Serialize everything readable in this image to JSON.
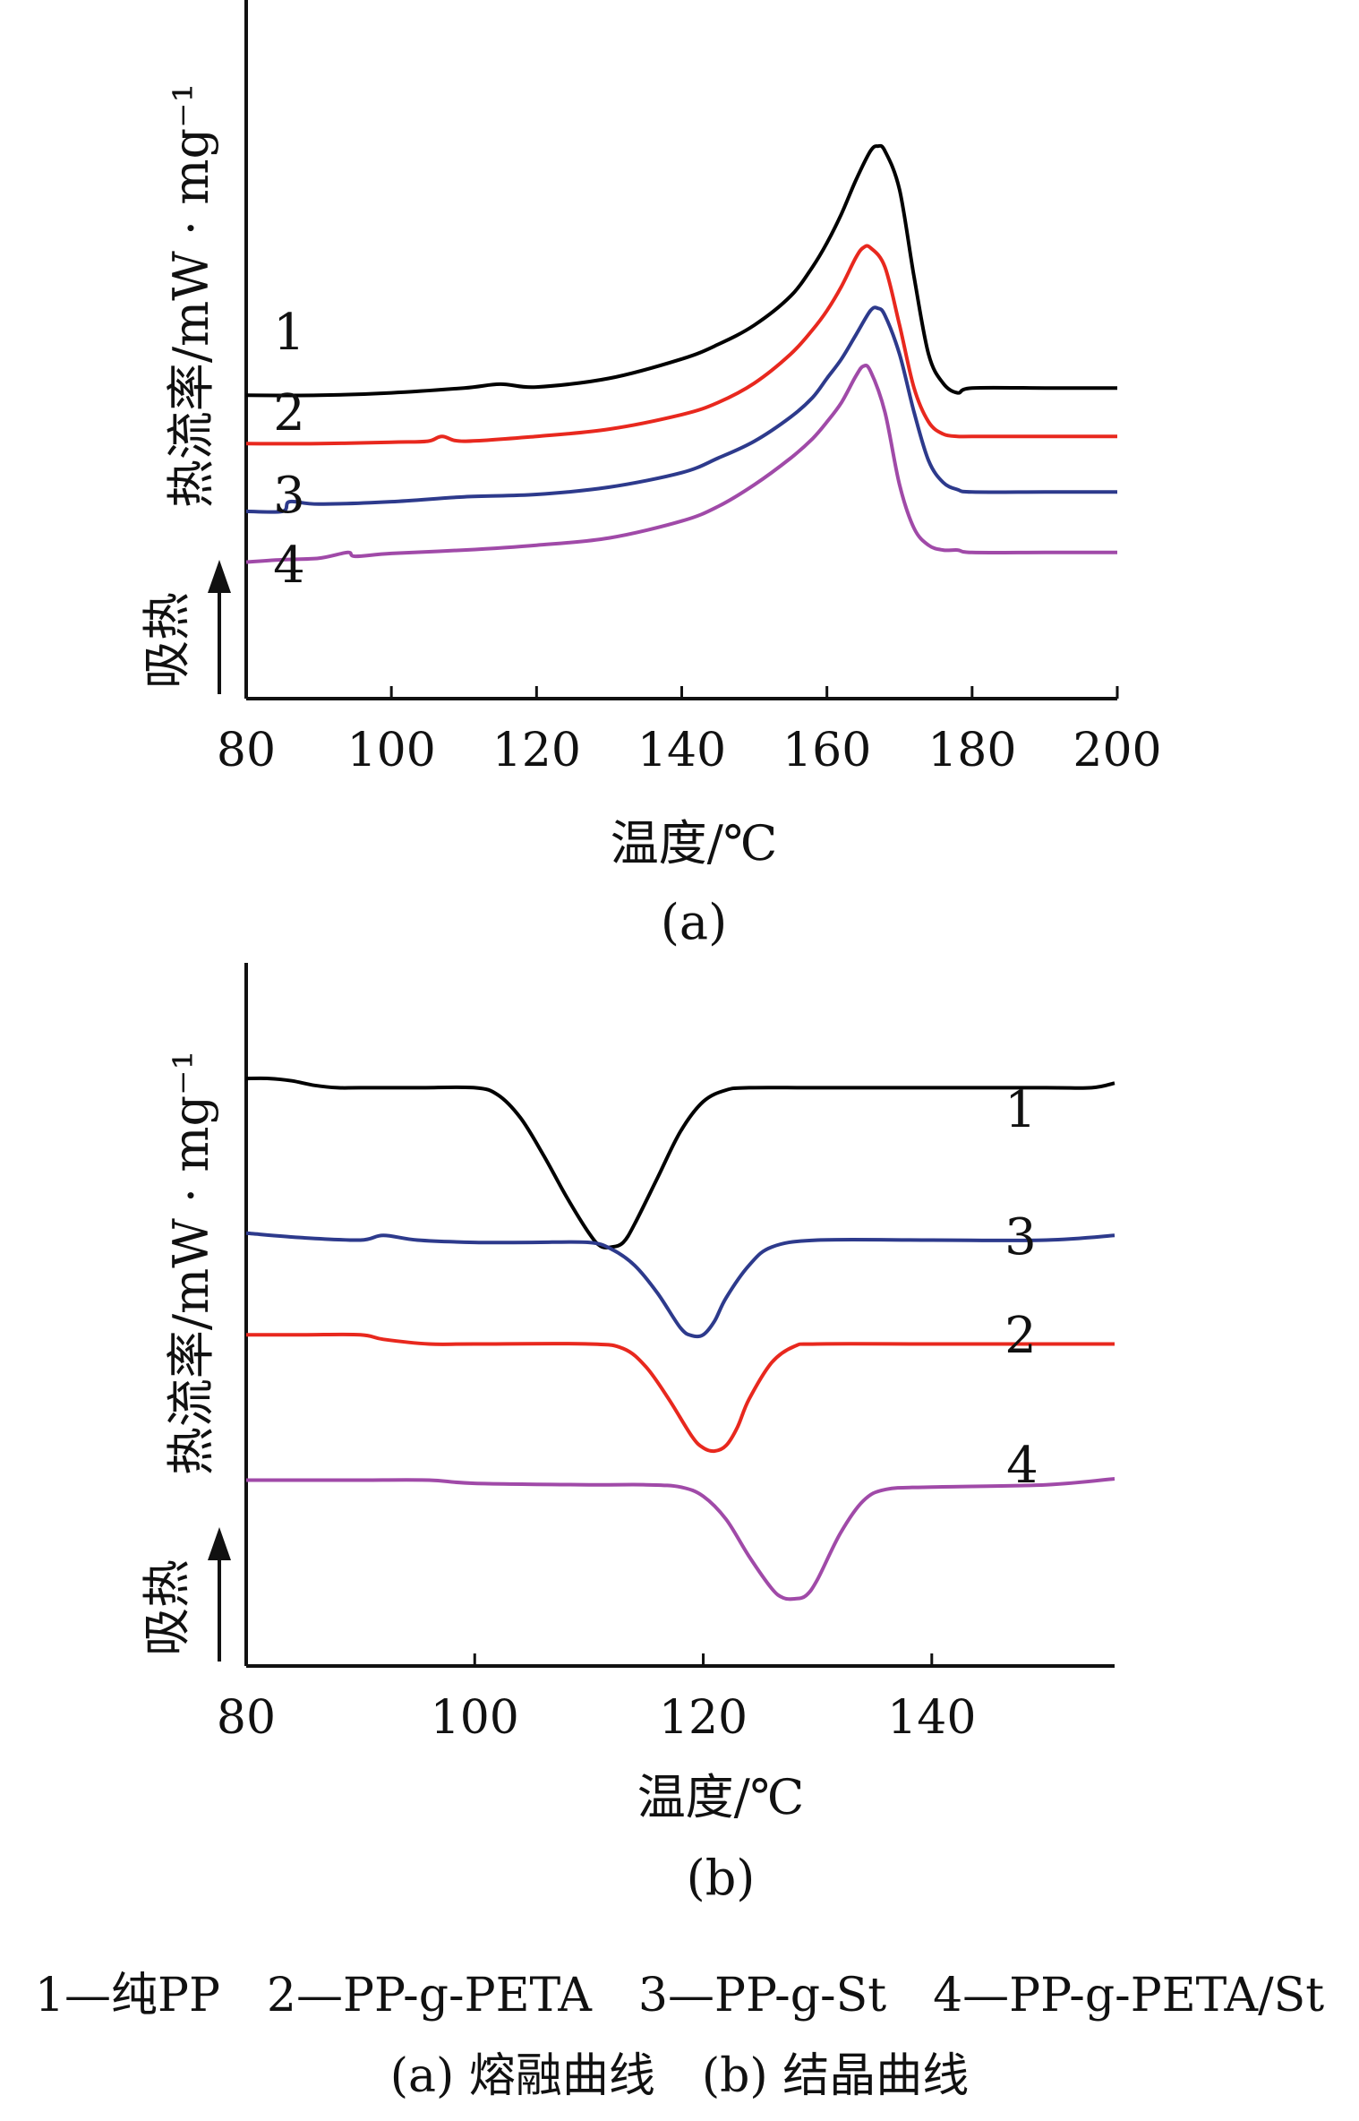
{
  "chart_data": [
    {
      "type": "line",
      "panel_label": "(a)",
      "xlabel": "温度/℃",
      "ylabel": "热流率/mW · mg⁻¹",
      "direction_label": "吸热",
      "xlim": [
        80,
        200
      ],
      "xticks": [
        "80",
        "100",
        "120",
        "140",
        "160",
        "180",
        "200"
      ],
      "series": [
        {
          "label": "1",
          "color": "#000000",
          "x": [
            80,
            90,
            100,
            110,
            115,
            120,
            130,
            140,
            145,
            150,
            155,
            158,
            160,
            162,
            164,
            166,
            167,
            168,
            170,
            172,
            174,
            176,
            178,
            180,
            190,
            200
          ],
          "y": [
            4.05,
            4.05,
            4.1,
            4.2,
            4.28,
            4.22,
            4.4,
            4.8,
            5.1,
            5.5,
            6.1,
            6.7,
            7.2,
            7.8,
            8.5,
            9.1,
            9.2,
            9.1,
            8.3,
            6.5,
            4.9,
            4.3,
            4.1,
            4.2,
            4.2,
            4.2
          ]
        },
        {
          "label": "2",
          "color": "#e8281e",
          "x": [
            80,
            90,
            100,
            105,
            107,
            110,
            120,
            130,
            140,
            145,
            150,
            155,
            158,
            160,
            162,
            164,
            165,
            166,
            168,
            170,
            172,
            174,
            176,
            178,
            180,
            190,
            200
          ],
          "y": [
            3.05,
            3.05,
            3.08,
            3.1,
            3.2,
            3.1,
            3.2,
            3.35,
            3.65,
            3.9,
            4.3,
            4.9,
            5.4,
            5.8,
            6.3,
            6.9,
            7.1,
            7.1,
            6.7,
            5.5,
            4.2,
            3.5,
            3.25,
            3.2,
            3.2,
            3.2,
            3.2
          ]
        },
        {
          "label": "3",
          "color": "#2d3a8c",
          "x": [
            80,
            85,
            86,
            90,
            100,
            110,
            120,
            130,
            140,
            145,
            150,
            155,
            158,
            160,
            162,
            164,
            166,
            167,
            168,
            170,
            172,
            174,
            176,
            178,
            180,
            190,
            200
          ],
          "y": [
            1.65,
            1.65,
            1.85,
            1.8,
            1.85,
            1.95,
            2.0,
            2.15,
            2.45,
            2.75,
            3.1,
            3.6,
            4.0,
            4.4,
            4.8,
            5.3,
            5.8,
            5.85,
            5.7,
            4.9,
            3.7,
            2.7,
            2.25,
            2.1,
            2.05,
            2.05,
            2.05
          ]
        },
        {
          "label": "4",
          "color": "#a04aa8",
          "x": [
            80,
            85,
            90,
            94,
            95,
            100,
            110,
            120,
            130,
            140,
            145,
            150,
            155,
            158,
            160,
            162,
            164,
            165,
            166,
            168,
            170,
            172,
            174,
            176,
            178,
            180,
            190,
            200
          ],
          "y": [
            0.6,
            0.65,
            0.68,
            0.8,
            0.72,
            0.78,
            0.85,
            0.95,
            1.1,
            1.45,
            1.75,
            2.2,
            2.75,
            3.15,
            3.5,
            3.9,
            4.45,
            4.65,
            4.55,
            3.7,
            2.2,
            1.3,
            0.95,
            0.85,
            0.85,
            0.8,
            0.8,
            0.8
          ]
        }
      ]
    },
    {
      "type": "line",
      "panel_label": "(b)",
      "xlabel": "温度/℃",
      "ylabel": "热流率/mW · mg⁻¹",
      "direction_label": "吸热",
      "xlim": [
        80,
        156
      ],
      "xticks": [
        "80",
        "100",
        "120",
        "140"
      ],
      "series": [
        {
          "label": "1",
          "color": "#000000",
          "x": [
            80,
            82,
            84,
            86,
            88,
            90,
            95,
            100,
            102,
            104,
            106,
            108,
            110,
            111,
            112,
            113,
            114,
            116,
            118,
            120,
            122,
            124,
            130,
            140,
            150,
            154,
            156
          ],
          "y": [
            4.95,
            4.95,
            4.9,
            4.8,
            4.75,
            4.75,
            4.75,
            4.75,
            4.6,
            4.1,
            3.3,
            2.4,
            1.6,
            1.32,
            1.3,
            1.4,
            1.8,
            2.8,
            3.8,
            4.45,
            4.7,
            4.75,
            4.75,
            4.75,
            4.75,
            4.75,
            4.85
          ]
        },
        {
          "label": "3",
          "color": "#2d3a8c",
          "x": [
            80,
            85,
            90,
            92,
            95,
            100,
            105,
            110,
            112,
            114,
            116,
            118,
            119,
            120,
            121,
            122,
            124,
            126,
            130,
            140,
            150,
            156
          ],
          "y": [
            1.6,
            1.5,
            1.45,
            1.55,
            1.45,
            1.4,
            1.4,
            1.4,
            1.25,
            0.9,
            0.3,
            -0.45,
            -0.62,
            -0.6,
            -0.3,
            0.2,
            0.9,
            1.3,
            1.45,
            1.45,
            1.45,
            1.55
          ]
        },
        {
          "label": "2",
          "color": "#e8281e",
          "x": [
            80,
            85,
            90,
            92,
            96,
            100,
            110,
            113,
            115,
            117,
            119,
            120,
            121,
            122,
            123,
            124,
            126,
            128,
            130,
            140,
            150,
            156
          ],
          "y": [
            -0.6,
            -0.6,
            -0.6,
            -0.7,
            -0.8,
            -0.8,
            -0.8,
            -0.9,
            -1.3,
            -2.0,
            -2.8,
            -3.05,
            -3.12,
            -3.0,
            -2.6,
            -2.0,
            -1.2,
            -0.85,
            -0.8,
            -0.8,
            -0.8,
            -0.8
          ]
        },
        {
          "label": "4",
          "color": "#a04aa8",
          "x": [
            80,
            85,
            90,
            96,
            100,
            110,
            115,
            118,
            120,
            122,
            124,
            126,
            127,
            128,
            129,
            130,
            132,
            134,
            136,
            140,
            150,
            156
          ],
          "y": [
            -3.75,
            -3.75,
            -3.75,
            -3.75,
            -3.82,
            -3.85,
            -3.85,
            -3.9,
            -4.1,
            -4.6,
            -5.4,
            -6.1,
            -6.3,
            -6.32,
            -6.25,
            -5.9,
            -4.9,
            -4.2,
            -3.95,
            -3.9,
            -3.85,
            -3.72
          ]
        }
      ]
    }
  ],
  "legend_text": "1—纯PP　2—PP-g-PETA　3—PP-g-St　4—PP-g-PETA/St",
  "panel_caption_text": "(a) 熔融曲线　(b) 结晶曲线"
}
